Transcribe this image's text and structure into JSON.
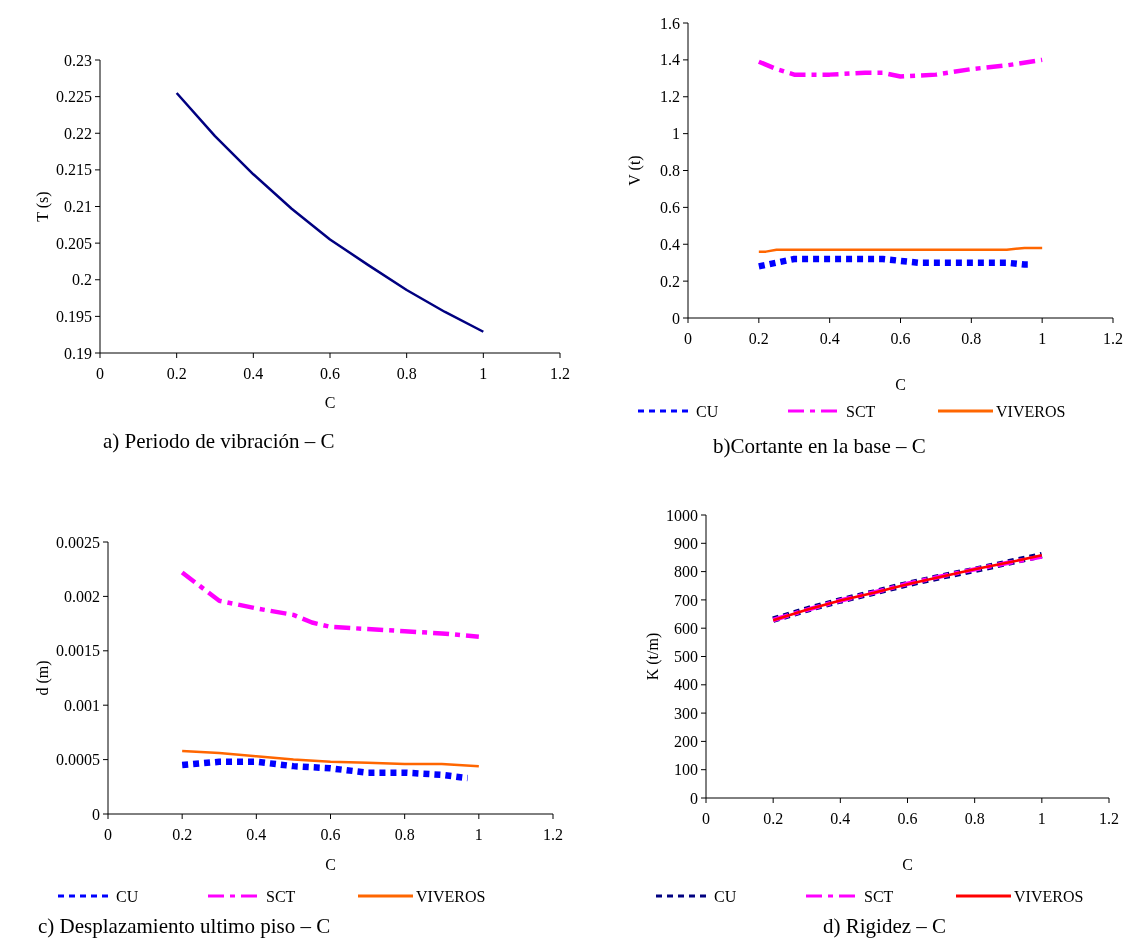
{
  "chart_data": [
    {
      "type": "line",
      "title": "a) Periodo de vibración – C",
      "xlabel": "C",
      "ylabel": "T (s)",
      "xlim": [
        0,
        1.2
      ],
      "xticks": [
        0,
        0.2,
        0.4,
        0.6,
        0.8,
        1,
        1.2
      ],
      "ylim": [
        0.19,
        0.23
      ],
      "yticks": [
        0.19,
        0.195,
        0.2,
        0.205,
        0.21,
        0.215,
        0.22,
        0.225,
        0.23
      ],
      "grid": false,
      "legend": false,
      "x": [
        0.2,
        0.3,
        0.4,
        0.5,
        0.6,
        0.7,
        0.8,
        0.9,
        1.0
      ],
      "series": [
        {
          "color": "#000080",
          "line_style": "solid",
          "values": [
            0.2255,
            0.2196,
            0.2144,
            0.2097,
            0.2055,
            0.202,
            0.1986,
            0.1956,
            0.1929
          ]
        }
      ]
    },
    {
      "type": "line",
      "title": "b)Cortante en la base – C",
      "xlabel": "C",
      "ylabel": "V (t)",
      "xlim": [
        0,
        1.2
      ],
      "xticks": [
        0,
        0.2,
        0.4,
        0.6,
        0.8,
        1,
        1.2
      ],
      "ylim": [
        0,
        1.6
      ],
      "yticks": [
        0,
        0.2,
        0.4,
        0.6,
        0.8,
        1,
        1.2,
        1.4,
        1.6
      ],
      "grid": false,
      "legend": "bottom",
      "series": [
        {
          "name": "CU",
          "color": "#0000ff",
          "line_style": "dotted",
          "x": [
            0.2,
            0.3,
            0.4,
            0.5,
            0.55,
            0.6,
            0.65,
            0.8,
            0.9,
            0.95,
            0.97
          ],
          "values": [
            0.28,
            0.32,
            0.32,
            0.32,
            0.32,
            0.31,
            0.3,
            0.3,
            0.3,
            0.29,
            0.29
          ]
        },
        {
          "name": "SCT",
          "color": "#ff00ff",
          "line_style": "dashed",
          "x": [
            0.2,
            0.25,
            0.3,
            0.4,
            0.5,
            0.55,
            0.6,
            0.7,
            0.8,
            0.9,
            1.0
          ],
          "values": [
            1.39,
            1.35,
            1.32,
            1.32,
            1.33,
            1.33,
            1.31,
            1.32,
            1.35,
            1.37,
            1.4
          ]
        },
        {
          "name": "VIVEROS",
          "color": "#ff6600",
          "line_style": "solid",
          "x": [
            0.2,
            0.22,
            0.25,
            0.5,
            0.9,
            0.95,
            1.0
          ],
          "values": [
            0.36,
            0.36,
            0.37,
            0.37,
            0.37,
            0.38,
            0.38
          ]
        }
      ]
    },
    {
      "type": "line",
      "title": "c) Desplazamiento ultimo piso – C",
      "xlabel": "C",
      "ylabel": "d (m)",
      "xlim": [
        0,
        1.2
      ],
      "xticks": [
        0,
        0.2,
        0.4,
        0.6,
        0.8,
        1,
        1.2
      ],
      "ylim": [
        0,
        0.0025
      ],
      "yticks": [
        0,
        0.0005,
        0.001,
        0.0015,
        0.002,
        0.0025
      ],
      "grid": false,
      "legend": "bottom",
      "series": [
        {
          "name": "CU",
          "color": "#0000ff",
          "line_style": "dotted",
          "x": [
            0.2,
            0.3,
            0.4,
            0.5,
            0.6,
            0.7,
            0.8,
            0.9,
            0.97
          ],
          "values": [
            0.00045,
            0.00048,
            0.00048,
            0.00044,
            0.00042,
            0.00038,
            0.00038,
            0.00036,
            0.00033
          ]
        },
        {
          "name": "SCT",
          "color": "#ff00ff",
          "line_style": "dashed",
          "x": [
            0.2,
            0.25,
            0.3,
            0.4,
            0.45,
            0.5,
            0.55,
            0.6,
            0.7,
            0.8,
            0.9,
            1.0
          ],
          "values": [
            0.00222,
            0.00209,
            0.00196,
            0.00189,
            0.00186,
            0.00183,
            0.00176,
            0.00172,
            0.0017,
            0.00168,
            0.00166,
            0.00163
          ]
        },
        {
          "name": "VIVEROS",
          "color": "#ff6600",
          "line_style": "solid",
          "x": [
            0.2,
            0.3,
            0.4,
            0.5,
            0.6,
            0.7,
            0.8,
            0.9,
            1.0
          ],
          "values": [
            0.00058,
            0.00056,
            0.00053,
            0.0005,
            0.00048,
            0.00047,
            0.00046,
            0.00046,
            0.00044
          ]
        }
      ]
    },
    {
      "type": "line",
      "title": "d) Rigidez – C",
      "xlabel": "C",
      "ylabel": "K (t/m)",
      "xlim": [
        0,
        1.2
      ],
      "xticks": [
        0,
        0.2,
        0.4,
        0.6,
        0.8,
        1,
        1.2
      ],
      "ylim": [
        0,
        1000
      ],
      "yticks": [
        0,
        100,
        200,
        300,
        400,
        500,
        600,
        700,
        800,
        900,
        1000
      ],
      "grid": false,
      "legend": "bottom",
      "x": [
        0.2,
        0.3,
        0.4,
        0.5,
        0.6,
        0.7,
        0.8,
        0.9,
        1.0
      ],
      "series": [
        {
          "name": "CU",
          "color": "#000080",
          "line_style": "dotted",
          "values": [
            630,
            666,
            698,
            726,
            756,
            782,
            806,
            832,
            858
          ]
        },
        {
          "name": "SCT",
          "color": "#ff00ff",
          "line_style": "dashed",
          "values": [
            629,
            665,
            698,
            726,
            757,
            783,
            808,
            831,
            853
          ]
        },
        {
          "name": "VIVEROS",
          "color": "#ff0000",
          "line_style": "solid",
          "values": [
            628,
            665,
            698,
            725,
            755,
            782,
            808,
            832,
            858
          ]
        }
      ]
    }
  ]
}
